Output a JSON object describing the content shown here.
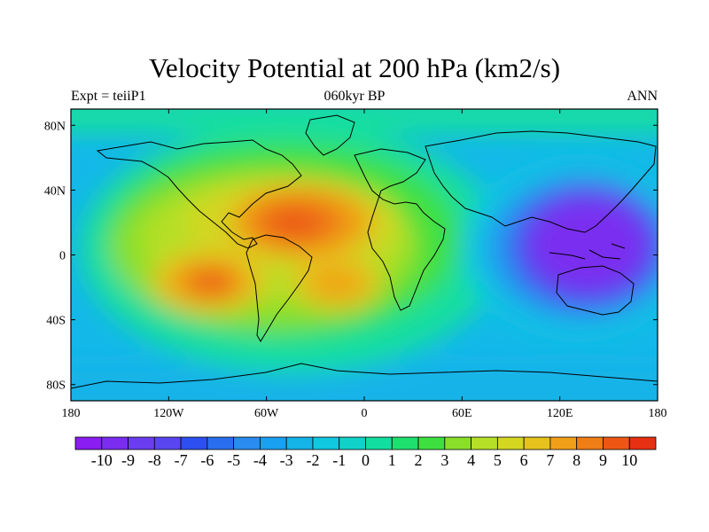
{
  "title": "Velocity Potential at 200 hPa (km2/s)",
  "subtitle_left": "Expt = teiiP1",
  "subtitle_center": "060kyr BP",
  "subtitle_right": "ANN",
  "y_ticks": [
    "80N",
    "40N",
    "0",
    "40S",
    "80S"
  ],
  "y_tick_values": [
    80,
    40,
    0,
    -40,
    -80
  ],
  "x_ticks": [
    "180",
    "120W",
    "60W",
    "0",
    "60E",
    "120E",
    "180"
  ],
  "x_tick_values": [
    -180,
    -120,
    -60,
    0,
    60,
    120,
    180
  ],
  "colorbar": {
    "labels": [
      "-10",
      "-9",
      "-8",
      "-7",
      "-6",
      "-5",
      "-4",
      "-3",
      "-2",
      "-1",
      "0",
      "1",
      "2",
      "3",
      "4",
      "5",
      "6",
      "7",
      "8",
      "9",
      "10"
    ],
    "colors": [
      "#8a1df0",
      "#7a2df0",
      "#6b3df0",
      "#5a46f0",
      "#2e4ff0",
      "#2a6ef0",
      "#2a8cf0",
      "#1aa0f0",
      "#14b3e8",
      "#10c8e0",
      "#10d2c8",
      "#12dea0",
      "#1ee06e",
      "#3ee040",
      "#8adf2a",
      "#b6df28",
      "#d4d620",
      "#e6c21c",
      "#f0a018",
      "#ef7e16",
      "#ec5814",
      "#e63012"
    ]
  },
  "map_data": {
    "lat_range": [
      -90,
      90
    ],
    "lon_range": [
      -180,
      180
    ],
    "field": "velocity potential anomaly",
    "units": "km2/s",
    "centers": [
      {
        "name": "Indo-Pacific minimum",
        "lon": 130,
        "lat": 2,
        "value": -10
      },
      {
        "name": "Caribbean / Atlantic maximum",
        "lon": -45,
        "lat": 15,
        "value": 9
      },
      {
        "name": "East Pacific maximum",
        "lon": -100,
        "lat": -18,
        "value": 8
      },
      {
        "name": "South Atlantic maximum",
        "lon": -15,
        "lat": -18,
        "value": 7
      }
    ]
  }
}
